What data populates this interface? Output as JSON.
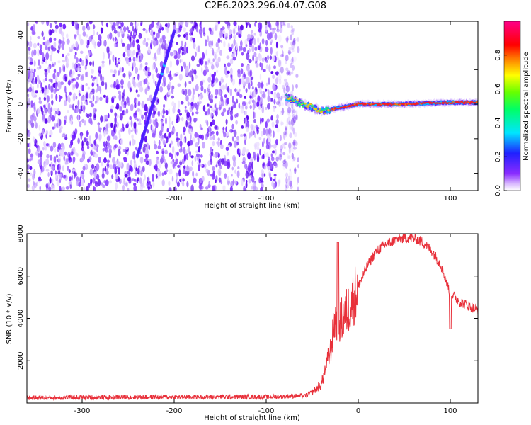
{
  "title": "C2E6.2023.296.04.07.G08",
  "colors": {
    "snr_line": "#e8303a",
    "spectrogram_noise": "#7b2cff",
    "frame": "#000000"
  },
  "chart_data": [
    {
      "type": "heatmap",
      "xlabel": "Height of straight line (km)",
      "ylabel": "Frequency (Hz)",
      "xlim": [
        -360,
        130
      ],
      "ylim": [
        -50,
        48
      ],
      "xticks": [
        -300,
        -200,
        -100,
        0,
        100
      ],
      "yticks": [
        -40,
        -20,
        0,
        20,
        40
      ],
      "xtick_labels": [
        "-300",
        "-200",
        "-100",
        "0",
        "100"
      ],
      "ytick_labels": [
        "-40",
        "-20",
        "0",
        "20",
        "40"
      ],
      "colorbar": {
        "label": "Normalized spectral amplitude",
        "range": [
          0,
          1
        ],
        "ticks": [
          0.0,
          0.2,
          0.4,
          0.6,
          0.8
        ],
        "tick_labels": [
          "0.0",
          "0.2",
          "0.4",
          "0.6",
          "0.8"
        ],
        "colormap": "hsv-like (magenta, blue, cyan, green, yellow, red, magenta)"
      },
      "features": {
        "noise_region_x": [
          -360,
          -65
        ],
        "diagonal_streak": {
          "x": [
            -240,
            -200
          ],
          "y": [
            -30,
            42
          ]
        },
        "signal_band": {
          "x": [
            -78,
            130
          ],
          "center_hz": [
            [
              -78,
              4
            ],
            [
              -60,
              0
            ],
            [
              -40,
              -4
            ],
            [
              -20,
              -2
            ],
            [
              0,
              0
            ],
            [
              50,
              0
            ],
            [
              100,
              1
            ],
            [
              130,
              1
            ]
          ]
        }
      }
    },
    {
      "type": "line",
      "xlabel": "Height of straight line (km)",
      "ylabel": "SNR (10 * v/v)",
      "xlim": [
        -360,
        130
      ],
      "ylim": [
        0,
        8000
      ],
      "xticks": [
        -300,
        -200,
        -100,
        0,
        100
      ],
      "yticks": [
        2000,
        4000,
        6000,
        8000
      ],
      "xtick_labels": [
        "-300",
        "-200",
        "-100",
        "0",
        "100"
      ],
      "ytick_labels": [
        "2000",
        "4000",
        "6000",
        "8000"
      ],
      "series": [
        {
          "x": [
            -360,
            -300,
            -200,
            -100,
            -60,
            -50,
            -40,
            -30,
            -25,
            -20,
            -10,
            0,
            10,
            20,
            30,
            40,
            50,
            60,
            70,
            80,
            90,
            100,
            110,
            120,
            130
          ],
          "values": [
            200,
            220,
            240,
            250,
            300,
            500,
            900,
            2500,
            4000,
            3800,
            4500,
            5500,
            6500,
            7200,
            7500,
            7700,
            7800,
            7800,
            7600,
            7200,
            6500,
            5200,
            4800,
            4600,
            4400
          ]
        }
      ]
    }
  ]
}
